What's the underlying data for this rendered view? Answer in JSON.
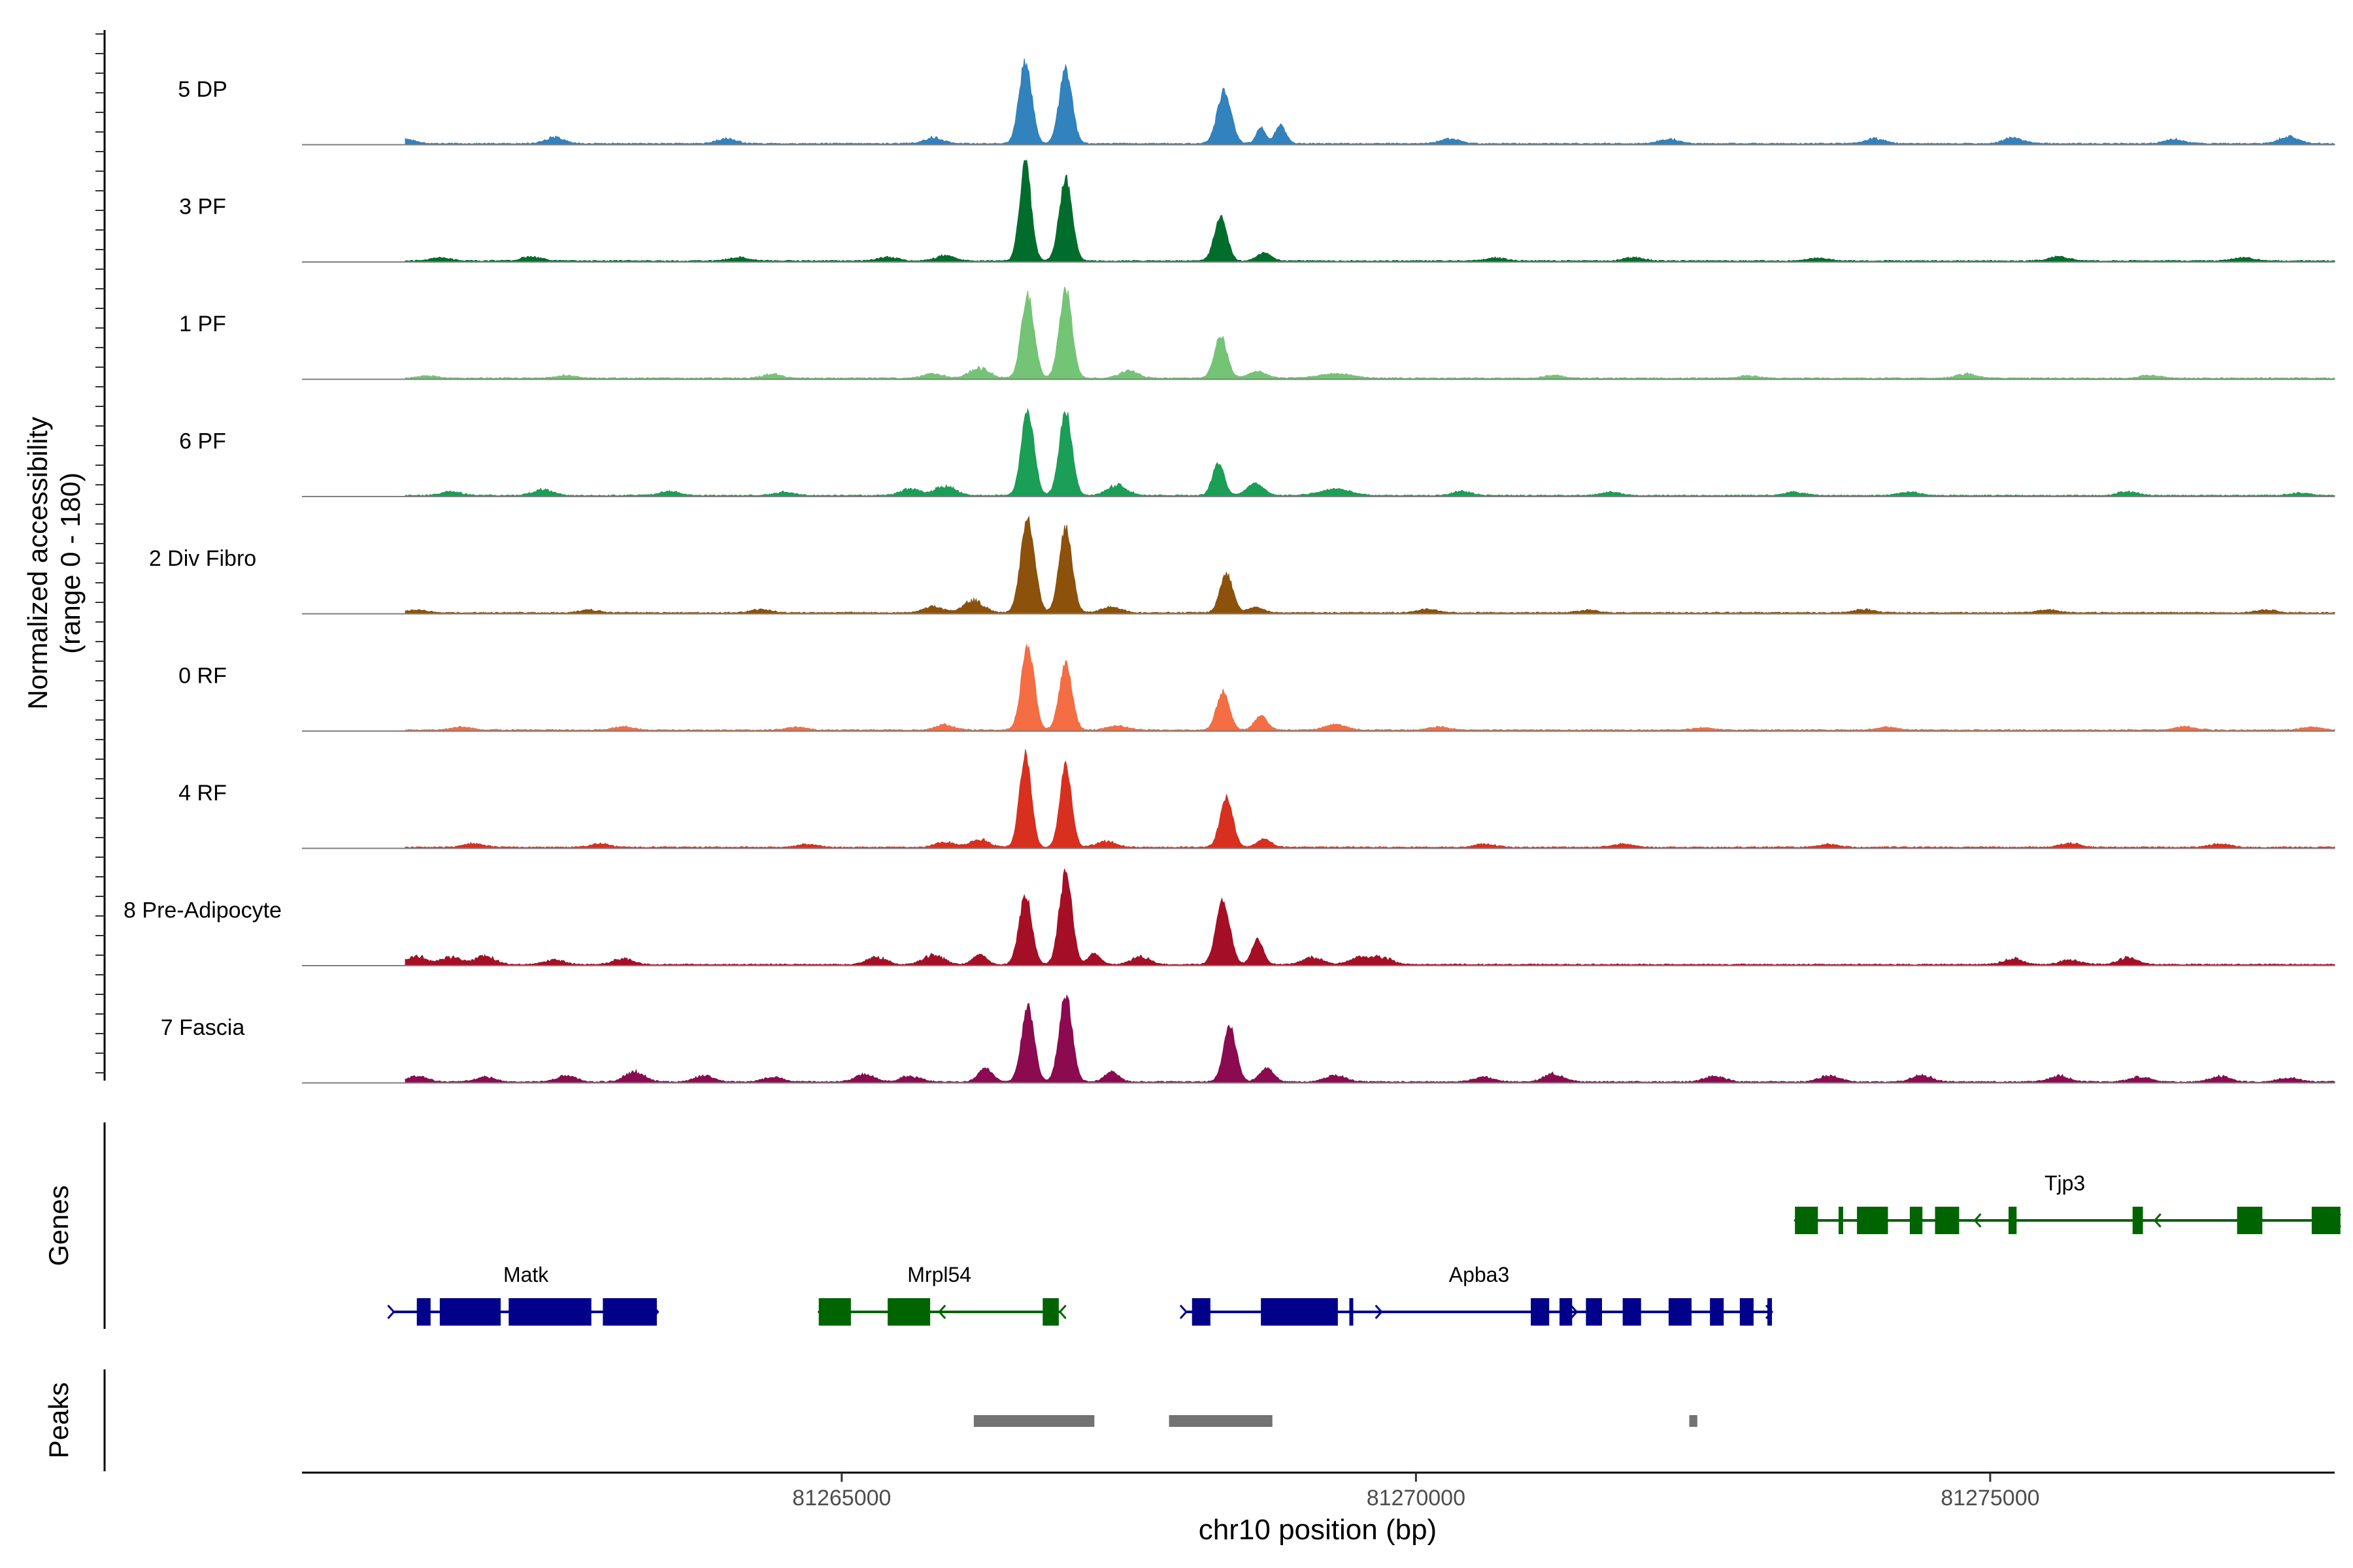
{
  "chart_data": {
    "type": "area",
    "title": "",
    "xlabel": "chr10 position (bp)",
    "ylabel": "Normalized accessibility",
    "ylabel_range_text": "(range 0 - 180)",
    "ylim": [
      0,
      180
    ],
    "xlim": [
      81260300,
      81278000
    ],
    "x_ticks": [
      81265000,
      81270000,
      81275000
    ],
    "x_tick_labels": [
      "81265000",
      "81270000",
      "81275000"
    ],
    "panel_labels": {
      "genes": "Genes",
      "peaks": "Peaks"
    },
    "series": [
      {
        "name": "5 DP",
        "color": "#3182bd",
        "peaks": [
          [
            81266600,
            150,
            55
          ],
          [
            81266950,
            135,
            55
          ],
          [
            81268330,
            95,
            60
          ],
          [
            81268650,
            30,
            40
          ],
          [
            81268820,
            35,
            45
          ]
        ],
        "noise": [
          [
            81261200,
            10
          ],
          [
            81262500,
            12
          ],
          [
            81264000,
            10
          ],
          [
            81265800,
            12
          ],
          [
            81270300,
            10
          ],
          [
            81272200,
            9
          ],
          [
            81274000,
            10
          ],
          [
            81275200,
            12
          ],
          [
            81276600,
            9
          ],
          [
            81277600,
            15
          ]
        ]
      },
      {
        "name": "3 PF",
        "color": "#006d2c",
        "peaks": [
          [
            81266600,
            175,
            50
          ],
          [
            81266950,
            150,
            55
          ],
          [
            81268300,
            80,
            55
          ],
          [
            81268680,
            15,
            60
          ]
        ],
        "noise": [
          [
            81261500,
            7
          ],
          [
            81262300,
            9
          ],
          [
            81264100,
            7
          ],
          [
            81265400,
            8
          ],
          [
            81265900,
            11
          ],
          [
            81270700,
            6
          ],
          [
            81271900,
            7
          ],
          [
            81273500,
            6
          ],
          [
            81275600,
            9
          ],
          [
            81277200,
            7
          ]
        ]
      },
      {
        "name": "1 PF",
        "color": "#74c476",
        "peaks": [
          [
            81266620,
            150,
            55
          ],
          [
            81266950,
            160,
            55
          ],
          [
            81268300,
            75,
            55
          ],
          [
            81268620,
            12,
            80
          ],
          [
            81269300,
            8,
            150
          ]
        ],
        "noise": [
          [
            81261400,
            5
          ],
          [
            81262600,
            6
          ],
          [
            81264400,
            8
          ],
          [
            81265800,
            9
          ],
          [
            81266200,
            22
          ],
          [
            81267500,
            15
          ],
          [
            81271200,
            6
          ],
          [
            81272900,
            5
          ],
          [
            81274800,
            9
          ],
          [
            81276400,
            6
          ]
        ]
      },
      {
        "name": "6 PF",
        "color": "#1b9e56",
        "peaks": [
          [
            81266620,
            155,
            55
          ],
          [
            81266950,
            150,
            55
          ],
          [
            81268280,
            60,
            50
          ],
          [
            81268600,
            22,
            70
          ],
          [
            81269300,
            12,
            130
          ]
        ],
        "noise": [
          [
            81261600,
            8
          ],
          [
            81262400,
            12
          ],
          [
            81263500,
            9
          ],
          [
            81264500,
            7
          ],
          [
            81265600,
            14
          ],
          [
            81265900,
            20
          ],
          [
            81267400,
            22
          ],
          [
            81270400,
            8
          ],
          [
            81271700,
            7
          ],
          [
            81273300,
            7
          ],
          [
            81274300,
            7
          ],
          [
            81276200,
            8
          ],
          [
            81277700,
            5
          ]
        ]
      },
      {
        "name": "2 Div Fibro",
        "color": "#8c510a",
        "peaks": [
          [
            81266620,
            170,
            60
          ],
          [
            81266950,
            155,
            55
          ],
          [
            81268350,
            70,
            55
          ],
          [
            81268600,
            10,
            70
          ]
        ],
        "noise": [
          [
            81261300,
            6
          ],
          [
            81262800,
            6
          ],
          [
            81264300,
            7
          ],
          [
            81265800,
            12
          ],
          [
            81266150,
            25
          ],
          [
            81267350,
            12
          ],
          [
            81270100,
            7
          ],
          [
            81271500,
            6
          ],
          [
            81273900,
            7
          ],
          [
            81275500,
            6
          ],
          [
            81277400,
            6
          ]
        ]
      },
      {
        "name": "0 RF",
        "color": "#f46d43",
        "peaks": [
          [
            81266620,
            155,
            55
          ],
          [
            81266950,
            120,
            55
          ],
          [
            81268320,
            70,
            55
          ],
          [
            81268650,
            25,
            55
          ],
          [
            81269300,
            10,
            90
          ]
        ],
        "noise": [
          [
            81261700,
            6
          ],
          [
            81263100,
            7
          ],
          [
            81264600,
            6
          ],
          [
            81265900,
            10
          ],
          [
            81267400,
            9
          ],
          [
            81270200,
            6
          ],
          [
            81272500,
            5
          ],
          [
            81274100,
            6
          ],
          [
            81276700,
            7
          ],
          [
            81277800,
            6
          ]
        ]
      },
      {
        "name": "4 RF",
        "color": "#d7301f",
        "peaks": [
          [
            81266600,
            175,
            50
          ],
          [
            81266950,
            150,
            50
          ],
          [
            81268350,
            90,
            55
          ],
          [
            81268680,
            15,
            60
          ]
        ],
        "noise": [
          [
            81261800,
            8
          ],
          [
            81262900,
            7
          ],
          [
            81264700,
            6
          ],
          [
            81265900,
            10
          ],
          [
            81266200,
            15
          ],
          [
            81267300,
            12
          ],
          [
            81270600,
            7
          ],
          [
            81271800,
            7
          ],
          [
            81273600,
            6
          ],
          [
            81275700,
            8
          ],
          [
            81277000,
            7
          ]
        ]
      },
      {
        "name": "8 Pre-Adipocyte",
        "color": "#a50f26",
        "peaks": [
          [
            81266600,
            125,
            55
          ],
          [
            81266950,
            165,
            55
          ],
          [
            81268320,
            115,
            60
          ],
          [
            81268620,
            45,
            50
          ],
          [
            81267200,
            20,
            50
          ],
          [
            81266200,
            18,
            60
          ]
        ],
        "noise": [
          [
            81261300,
            18
          ],
          [
            81261600,
            15
          ],
          [
            81261900,
            18
          ],
          [
            81262500,
            10
          ],
          [
            81263100,
            12
          ],
          [
            81265800,
            20
          ],
          [
            81265300,
            15
          ],
          [
            81267600,
            15
          ],
          [
            81269100,
            15
          ],
          [
            81269500,
            14
          ],
          [
            81269700,
            16
          ],
          [
            81275200,
            12
          ],
          [
            81275700,
            10
          ],
          [
            81276200,
            14
          ]
        ]
      },
      {
        "name": "7 Fascia",
        "color": "#8b0a50",
        "peaks": [
          [
            81266620,
            135,
            55
          ],
          [
            81266950,
            160,
            55
          ],
          [
            81268380,
            100,
            55
          ],
          [
            81268700,
            25,
            60
          ],
          [
            81266250,
            25,
            60
          ],
          [
            81267350,
            18,
            60
          ]
        ],
        "noise": [
          [
            81261300,
            12
          ],
          [
            81261900,
            10
          ],
          [
            81262600,
            12
          ],
          [
            81263200,
            20
          ],
          [
            81263800,
            12
          ],
          [
            81264400,
            10
          ],
          [
            81265200,
            15
          ],
          [
            81265600,
            12
          ],
          [
            81269300,
            14
          ],
          [
            81270600,
            10
          ],
          [
            81271200,
            16
          ],
          [
            81272600,
            12
          ],
          [
            81273600,
            12
          ],
          [
            81274400,
            14
          ],
          [
            81275600,
            12
          ],
          [
            81276300,
            10
          ],
          [
            81277000,
            12
          ],
          [
            81277600,
            8
          ]
        ]
      }
    ],
    "genes": [
      {
        "name": "Matk",
        "strand": "+",
        "color": "#00008b",
        "start": 81261100,
        "end": 81263400,
        "row": 2,
        "exons": [
          [
            81261300,
            81261420
          ],
          [
            81261500,
            81262030
          ],
          [
            81262100,
            81262820
          ],
          [
            81262920,
            81263390
          ]
        ]
      },
      {
        "name": "Mrpl54",
        "strand": "-",
        "color": "#006400",
        "start": 81264800,
        "end": 81266900,
        "row": 2,
        "exons": [
          [
            81264800,
            81265080
          ],
          [
            81265400,
            81265770
          ],
          [
            81266750,
            81266890
          ]
        ]
      },
      {
        "name": "Apba3",
        "strand": "+",
        "color": "#00008b",
        "start": 81268000,
        "end": 81273100,
        "row": 2,
        "exons": [
          [
            81268050,
            81268210
          ],
          [
            81268650,
            81269320
          ],
          [
            81269420,
            81269445
          ],
          [
            81271000,
            81271160
          ],
          [
            81271250,
            81271360
          ],
          [
            81271480,
            81271620
          ],
          [
            81271800,
            81271960
          ],
          [
            81272200,
            81272400
          ],
          [
            81272560,
            81272680
          ],
          [
            81272820,
            81272940
          ],
          [
            81273060,
            81273100
          ]
        ]
      },
      {
        "name": "Tjp3",
        "strand": "-",
        "color": "#006400",
        "start": 81273300,
        "end": 81278000,
        "row": 1,
        "exons": [
          [
            81273300,
            81273500
          ],
          [
            81273680,
            81273720
          ],
          [
            81273840,
            81274110
          ],
          [
            81274300,
            81274410
          ],
          [
            81274520,
            81274730
          ],
          [
            81275160,
            81275230
          ],
          [
            81276240,
            81276330
          ],
          [
            81277150,
            81277370
          ],
          [
            81277800,
            81278050
          ]
        ]
      }
    ],
    "peaks": [
      {
        "start": 81266150,
        "end": 81267200
      },
      {
        "start": 81267850,
        "end": 81268750
      },
      {
        "start": 81272380,
        "end": 81272450
      }
    ]
  }
}
